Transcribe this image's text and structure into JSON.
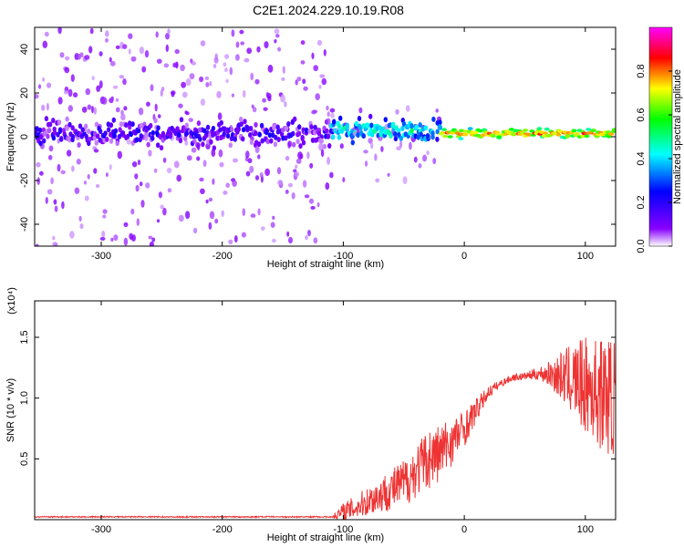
{
  "figure": {
    "title": "C2E1.2024.229.10.19.R08"
  },
  "chart_data": [
    {
      "type": "heatmap",
      "xlabel": "Height of straight line (km)",
      "ylabel": "Frequency (Hz)",
      "xlim": [
        -355,
        125
      ],
      "ylim": [
        -50,
        50
      ],
      "x_ticks": [
        "-300",
        "-200",
        "-100",
        "0",
        "100"
      ],
      "y_ticks": [
        "40",
        "20",
        "0",
        "-20",
        "-40"
      ],
      "colorbar": {
        "label": "Normalized spectral amplitude",
        "range": [
          0,
          1
        ],
        "ticks": [
          "0.0",
          "0.2",
          "0.4",
          "0.6",
          "0.8"
        ],
        "colors": [
          "#ffffff",
          "#8800ff",
          "#0000ff",
          "#00ffff",
          "#00ff00",
          "#ffff00",
          "#ff0000",
          "#ff00ff"
        ]
      },
      "series": [
        {
          "x_range": [
            -355,
            -110
          ],
          "center_freq": 1,
          "core_band": [
            -5,
            8
          ],
          "amplitude": 0.15,
          "scatter_band": [
            -50,
            50
          ]
        },
        {
          "x_range": [
            -110,
            -20
          ],
          "center_freq": 3,
          "core_band": [
            -4,
            9
          ],
          "amplitude": 0.45,
          "scatter_band": [
            -20,
            15
          ]
        },
        {
          "x_range": [
            -20,
            125
          ],
          "center_freq": 1.5,
          "core_band": [
            -1,
            4
          ],
          "amplitude": 0.8
        }
      ],
      "grid": false
    },
    {
      "type": "line",
      "xlabel": "Height of straight line (km)",
      "ylabel": "SNR (10 * v/v)",
      "y_exponent": "(x10⁴)",
      "xlim": [
        -355,
        125
      ],
      "ylim": [
        0,
        1.8
      ],
      "x_ticks": [
        "-300",
        "-200",
        "-100",
        "0",
        "100"
      ],
      "y_ticks": [
        "1.5",
        "1.0",
        "0.5"
      ],
      "color": "#ee3333",
      "x": [
        -355,
        -200,
        -110,
        -100,
        -90,
        -80,
        -70,
        -60,
        -50,
        -40,
        -30,
        -20,
        -10,
        0,
        10,
        20,
        30,
        40,
        50,
        60,
        70,
        80,
        90,
        100,
        110,
        125
      ],
      "y": [
        0.02,
        0.02,
        0.02,
        0.06,
        0.1,
        0.15,
        0.2,
        0.25,
        0.3,
        0.4,
        0.5,
        0.55,
        0.65,
        0.75,
        0.9,
        1.05,
        1.12,
        1.17,
        1.18,
        1.2,
        1.2,
        1.18,
        1.15,
        1.1,
        1.05,
        1.0
      ],
      "noise": [
        0,
        0,
        0,
        0.08,
        0.1,
        0.12,
        0.15,
        0.17,
        0.2,
        0.22,
        0.25,
        0.25,
        0.2,
        0.15,
        0.1,
        0.05,
        0.03,
        0.03,
        0.03,
        0.05,
        0.1,
        0.2,
        0.3,
        0.4,
        0.45,
        0.5
      ],
      "grid": false
    }
  ]
}
